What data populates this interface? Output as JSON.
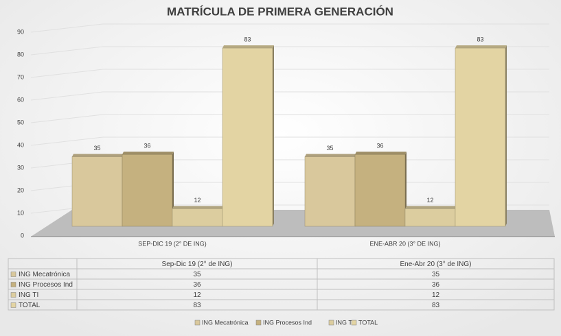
{
  "chart_data": {
    "type": "bar3d",
    "title": "MATRÍCULA DE PRIMERA GENERACIÓN",
    "categories": [
      "SEP-DIC 19 (2° DE ING)",
      "ENE-ABR 20 (3° DE ING)"
    ],
    "table_columns": [
      "Sep-Dic 19 (2° de ING)",
      "Ene-Abr 20 (3° de ING)"
    ],
    "series": [
      {
        "name": "ING Mecatrónica",
        "color": "#d9c89c",
        "values": [
          35,
          35
        ]
      },
      {
        "name": "ING Procesos Ind",
        "color": "#c5b17f",
        "values": [
          36,
          36
        ]
      },
      {
        "name": "ING TI",
        "color": "#dccd9f",
        "values": [
          12,
          12
        ]
      },
      {
        "name": "TOTAL",
        "color": "#e3d4a3",
        "values": [
          83,
          83
        ]
      }
    ],
    "ylim": [
      0,
      90
    ],
    "yticks": [
      0,
      10,
      20,
      30,
      40,
      50,
      60,
      70,
      80,
      90
    ],
    "grid": true
  }
}
